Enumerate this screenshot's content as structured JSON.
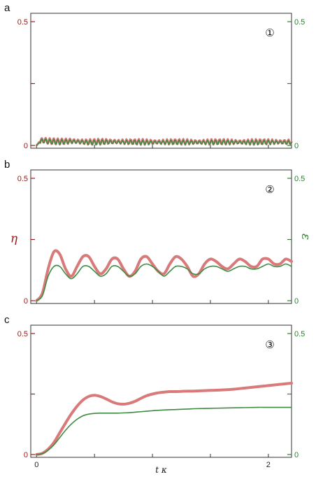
{
  "chart_data": [
    {
      "type": "line",
      "panel_label": "a",
      "marker": "①",
      "xlim": [
        -0.05,
        2.2
      ],
      "ylim_left": [
        0,
        0.5
      ],
      "ylim_right": [
        0,
        0.5
      ],
      "left_ticks": [
        "0",
        "0.5"
      ],
      "right_ticks": [
        "0",
        "0.5"
      ],
      "x_ticks": [],
      "series": [
        {
          "axis": "left",
          "color": "#d87a7a",
          "x": [
            0,
            0.02,
            0.05,
            0.1,
            0.2,
            0.3,
            0.45,
            0.6,
            0.8,
            1.0,
            1.2,
            1.4,
            1.6,
            1.8,
            2.0,
            2.2
          ],
          "y": [
            0,
            0.012,
            0.022,
            0.018,
            0.016,
            0.018,
            0.014,
            0.016,
            0.015,
            0.014,
            0.015,
            0.014,
            0.015,
            0.014,
            0.015,
            0.014
          ]
        },
        {
          "axis": "right",
          "color": "#3e8a42",
          "x": [
            0,
            0.02,
            0.05,
            0.1,
            0.2,
            0.3,
            0.45,
            0.6,
            0.8,
            1.0,
            1.2,
            1.4,
            1.6,
            1.8,
            2.0,
            2.2
          ],
          "y": [
            0,
            0.01,
            0.02,
            0.016,
            0.014,
            0.016,
            0.012,
            0.014,
            0.013,
            0.012,
            0.013,
            0.012,
            0.013,
            0.012,
            0.013,
            0.012
          ]
        }
      ]
    },
    {
      "type": "line",
      "panel_label": "b",
      "marker": "②",
      "xlim": [
        -0.05,
        2.2
      ],
      "ylim_left": [
        0,
        0.5
      ],
      "ylim_right": [
        0,
        0.5
      ],
      "left_ticks": [
        "0",
        "0.5"
      ],
      "right_ticks": [
        "0",
        "0.5"
      ],
      "x_ticks": [],
      "ylabel_left": "η",
      "ylabel_right": "ε",
      "series": [
        {
          "axis": "left",
          "color": "#d87a7a",
          "x": [
            0,
            0.05,
            0.1,
            0.15,
            0.2,
            0.25,
            0.3,
            0.35,
            0.4,
            0.45,
            0.5,
            0.55,
            0.6,
            0.65,
            0.7,
            0.75,
            0.8,
            0.85,
            0.9,
            0.95,
            1.0,
            1.05,
            1.1,
            1.15,
            1.2,
            1.25,
            1.3,
            1.35,
            1.4,
            1.45,
            1.5,
            1.55,
            1.6,
            1.65,
            1.7,
            1.75,
            1.8,
            1.85,
            1.9,
            1.95,
            2.0,
            2.05,
            2.1,
            2.15,
            2.2
          ],
          "y": [
            0,
            0.03,
            0.13,
            0.2,
            0.19,
            0.13,
            0.1,
            0.14,
            0.18,
            0.18,
            0.14,
            0.11,
            0.13,
            0.17,
            0.17,
            0.13,
            0.1,
            0.12,
            0.17,
            0.18,
            0.15,
            0.12,
            0.11,
            0.15,
            0.18,
            0.17,
            0.14,
            0.1,
            0.11,
            0.15,
            0.17,
            0.16,
            0.14,
            0.13,
            0.15,
            0.17,
            0.16,
            0.14,
            0.14,
            0.17,
            0.17,
            0.15,
            0.15,
            0.17,
            0.16
          ]
        },
        {
          "axis": "right",
          "color": "#3e8a42",
          "x": [
            0,
            0.05,
            0.1,
            0.15,
            0.2,
            0.25,
            0.3,
            0.35,
            0.4,
            0.45,
            0.5,
            0.55,
            0.6,
            0.65,
            0.7,
            0.75,
            0.8,
            0.85,
            0.9,
            0.95,
            1.0,
            1.05,
            1.1,
            1.15,
            1.2,
            1.25,
            1.3,
            1.35,
            1.4,
            1.45,
            1.5,
            1.55,
            1.6,
            1.65,
            1.7,
            1.75,
            1.8,
            1.85,
            1.9,
            1.95,
            2.0,
            2.05,
            2.1,
            2.15,
            2.2
          ],
          "y": [
            0,
            0.02,
            0.1,
            0.14,
            0.14,
            0.11,
            0.09,
            0.11,
            0.14,
            0.14,
            0.12,
            0.1,
            0.11,
            0.14,
            0.14,
            0.12,
            0.1,
            0.11,
            0.14,
            0.15,
            0.14,
            0.12,
            0.1,
            0.12,
            0.14,
            0.14,
            0.13,
            0.11,
            0.11,
            0.13,
            0.14,
            0.14,
            0.13,
            0.12,
            0.13,
            0.14,
            0.14,
            0.13,
            0.13,
            0.14,
            0.15,
            0.14,
            0.14,
            0.15,
            0.14
          ]
        }
      ]
    },
    {
      "type": "line",
      "panel_label": "c",
      "marker": "③",
      "xlim": [
        -0.05,
        2.2
      ],
      "ylim_left": [
        0,
        0.5
      ],
      "ylim_right": [
        0,
        0.5
      ],
      "left_ticks": [
        "0",
        "0.5"
      ],
      "right_ticks": [
        "0",
        "0.5"
      ],
      "x_ticks": [
        "0",
        "2"
      ],
      "xlabel": "t κ",
      "series": [
        {
          "axis": "left",
          "color": "#d87a7a",
          "x": [
            0,
            0.05,
            0.1,
            0.15,
            0.2,
            0.25,
            0.3,
            0.35,
            0.4,
            0.45,
            0.5,
            0.55,
            0.6,
            0.65,
            0.7,
            0.75,
            0.8,
            0.85,
            0.9,
            0.95,
            1.0,
            1.05,
            1.1,
            1.15,
            1.2,
            1.25,
            1.3,
            1.35,
            1.4,
            1.5,
            1.6,
            1.7,
            1.8,
            1.9,
            2.0,
            2.1,
            2.2
          ],
          "y": [
            0,
            0.005,
            0.022,
            0.05,
            0.09,
            0.13,
            0.168,
            0.2,
            0.225,
            0.24,
            0.245,
            0.24,
            0.23,
            0.218,
            0.21,
            0.208,
            0.212,
            0.22,
            0.232,
            0.243,
            0.25,
            0.255,
            0.258,
            0.26,
            0.26,
            0.261,
            0.262,
            0.262,
            0.263,
            0.265,
            0.267,
            0.27,
            0.275,
            0.28,
            0.285,
            0.29,
            0.295
          ]
        },
        {
          "axis": "right",
          "color": "#3e8a42",
          "x": [
            0,
            0.05,
            0.1,
            0.15,
            0.2,
            0.25,
            0.3,
            0.35,
            0.4,
            0.45,
            0.5,
            0.55,
            0.6,
            0.65,
            0.7,
            0.75,
            0.8,
            0.85,
            0.9,
            0.95,
            1.0,
            1.1,
            1.2,
            1.3,
            1.4,
            1.5,
            1.6,
            1.7,
            1.8,
            1.9,
            2.0,
            2.1,
            2.2
          ],
          "y": [
            0,
            0.004,
            0.018,
            0.04,
            0.07,
            0.1,
            0.126,
            0.146,
            0.16,
            0.167,
            0.17,
            0.171,
            0.171,
            0.171,
            0.171,
            0.172,
            0.173,
            0.175,
            0.177,
            0.179,
            0.181,
            0.184,
            0.186,
            0.188,
            0.19,
            0.191,
            0.192,
            0.193,
            0.194,
            0.195,
            0.195,
            0.195,
            0.195
          ]
        }
      ]
    }
  ]
}
